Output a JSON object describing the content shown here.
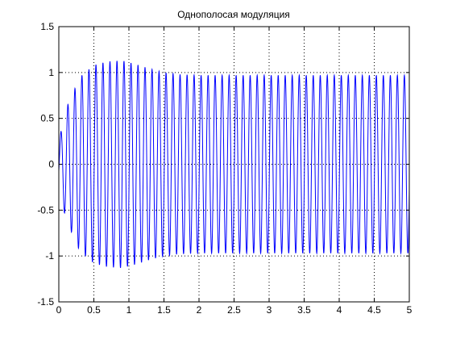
{
  "chart_data": {
    "type": "line",
    "title": "Однополосая модуляция",
    "xlabel": "",
    "ylabel": "",
    "xlim": [
      0,
      5
    ],
    "ylim": [
      -1.5,
      1.5
    ],
    "x_ticks": [
      0,
      0.5,
      1,
      1.5,
      2,
      2.5,
      3,
      3.5,
      4,
      4.5,
      5
    ],
    "x_tick_labels": [
      "0",
      "0.5",
      "1",
      "1.5",
      "2",
      "2.5",
      "3",
      "3.5",
      "4",
      "4.5",
      "5"
    ],
    "y_ticks": [
      -1.5,
      -1,
      -0.5,
      0,
      0.5,
      1,
      1.5
    ],
    "y_tick_labels": [
      "-1.5",
      "-1",
      "-0.5",
      "0",
      "0.5",
      "1",
      "1.5"
    ],
    "grid": true,
    "grid_style": "dotted",
    "line_color": "#0000ff",
    "carrier_cycles": 50,
    "envelope_peak": 1.13,
    "steady_amplitude": 0.97,
    "series": [
      {
        "values_note": "",
        "envelope": {
          "x": [
            0,
            0.1,
            0.3,
            0.5,
            0.7,
            0.9,
            1.1,
            1.3,
            1.5,
            1.7,
            2.0,
            5.0
          ],
          "y": [
            0.25,
            0.6,
            0.95,
            1.08,
            1.12,
            1.13,
            1.09,
            1.04,
            1.0,
            0.98,
            0.97,
            0.97
          ]
        }
      }
    ]
  }
}
